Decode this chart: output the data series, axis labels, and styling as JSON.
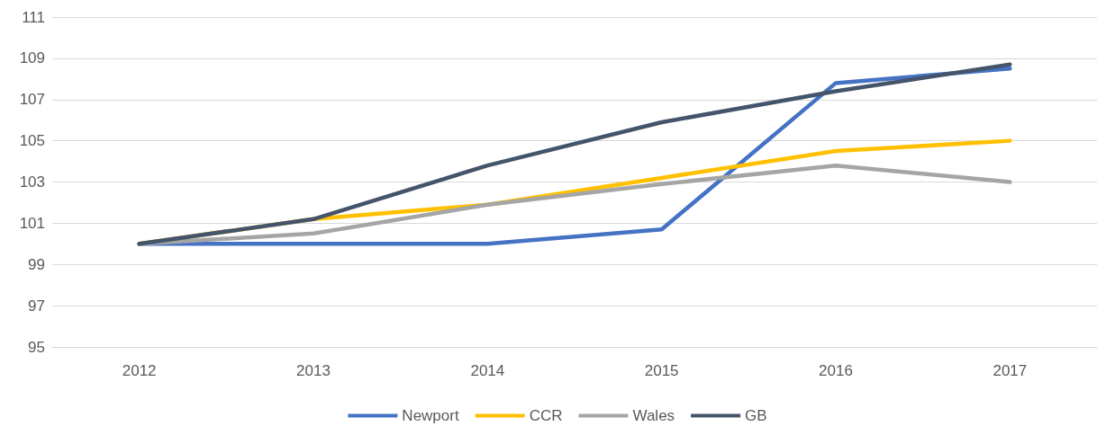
{
  "chart_data": {
    "type": "line",
    "categories": [
      "2012",
      "2013",
      "2014",
      "2015",
      "2016",
      "2017"
    ],
    "series": [
      {
        "name": "Newport",
        "color": "#4472c4",
        "values": [
          100,
          100,
          100,
          100.7,
          107.8,
          108.5
        ]
      },
      {
        "name": "CCR",
        "color": "#ffc000",
        "values": [
          100,
          101.2,
          101.9,
          103.2,
          104.5,
          105.0
        ]
      },
      {
        "name": "Wales",
        "color": "#a5a5a5",
        "values": [
          100,
          100.5,
          101.9,
          102.9,
          103.8,
          103.0
        ]
      },
      {
        "name": "GB",
        "color": "#44546a",
        "values": [
          100,
          101.2,
          103.8,
          105.9,
          107.4,
          108.7
        ]
      }
    ],
    "ylim": [
      95,
      111
    ],
    "yticks": [
      95,
      97,
      99,
      101,
      103,
      105,
      107,
      109,
      111
    ],
    "grid": "y",
    "legend": "bottom",
    "marker": "none",
    "line_style": "solid"
  }
}
